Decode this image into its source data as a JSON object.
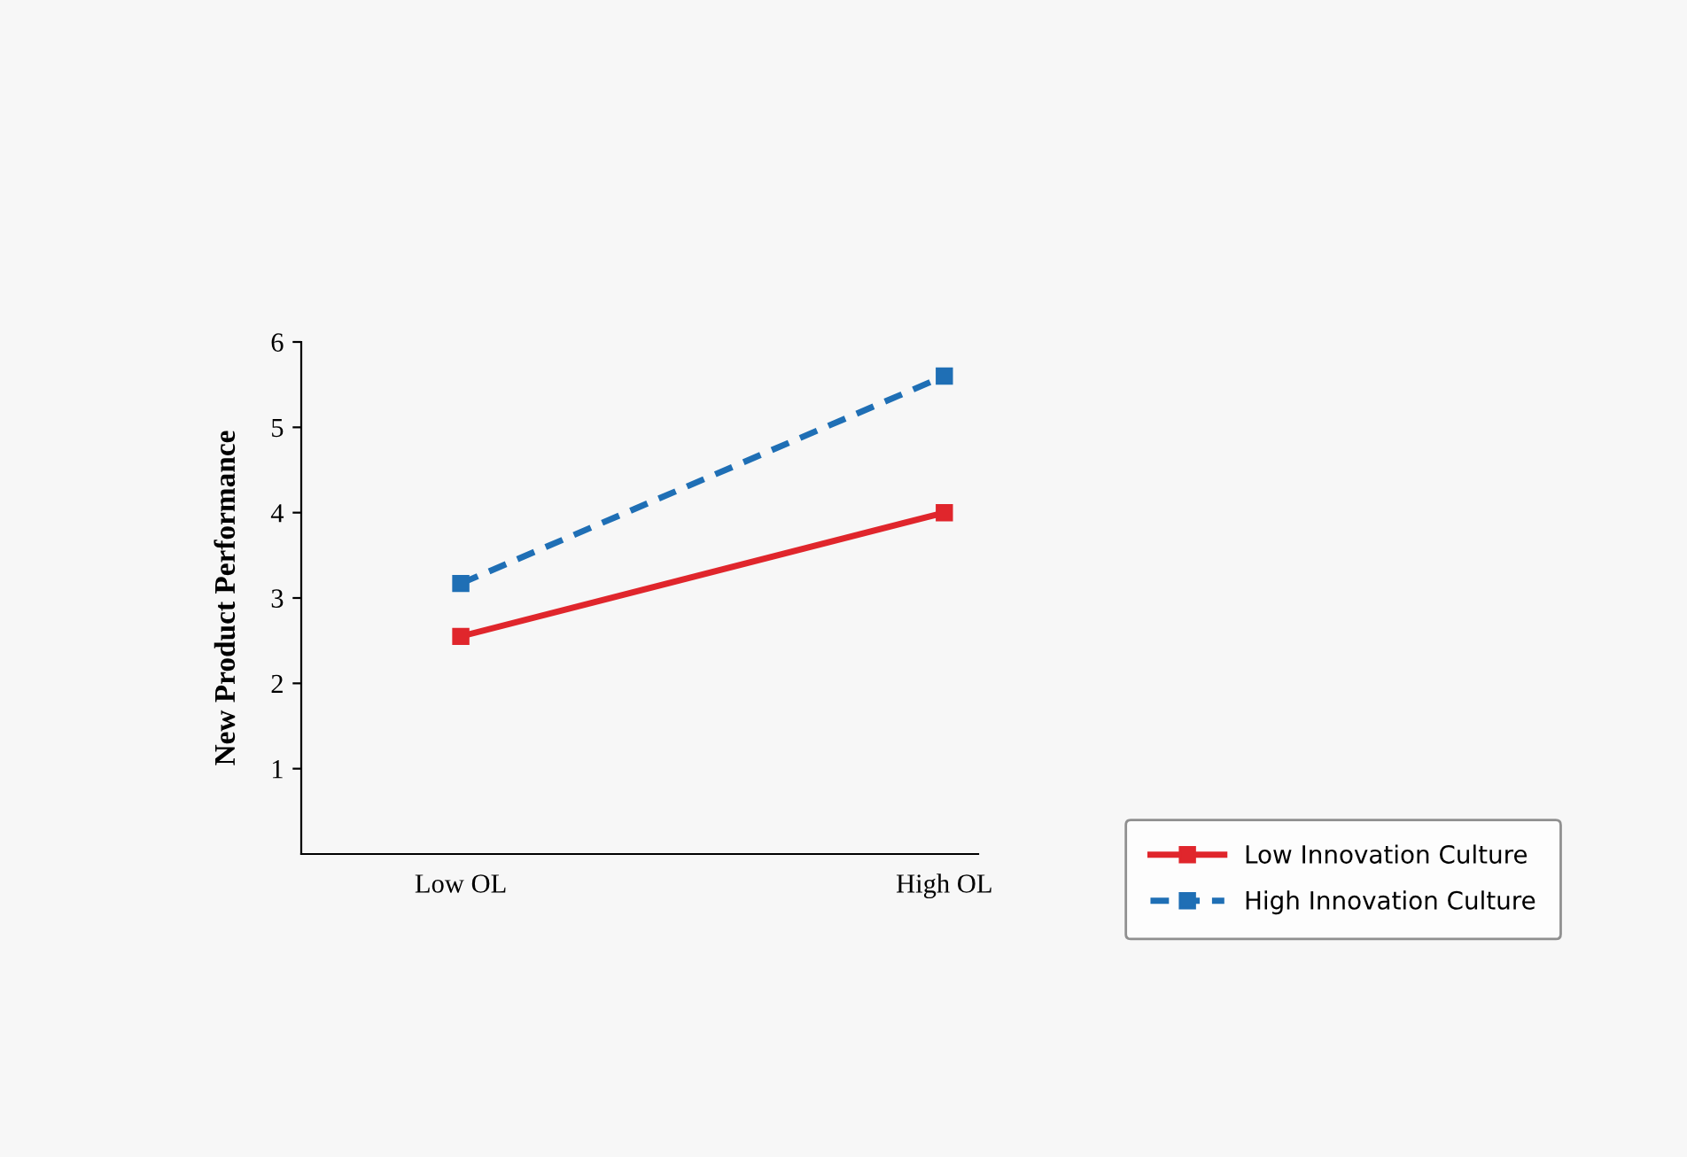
{
  "chart_data": {
    "type": "line",
    "ylabel": "New Product Performance",
    "categories": [
      "Low OL",
      "High OL"
    ],
    "series": [
      {
        "name": "Low Innovation Culture",
        "color": "#e0262c",
        "values": [
          2.55,
          4.0
        ],
        "line_style": "solid"
      },
      {
        "name": "High Innovation Culture",
        "color": "#1f6fb5",
        "values": [
          3.17,
          5.6
        ],
        "line_style": "dashed"
      }
    ],
    "ylim": [
      0,
      6
    ],
    "yticks": [
      1,
      2,
      3,
      4,
      5,
      6
    ],
    "marker": "square",
    "grid": false,
    "legend": "right"
  }
}
